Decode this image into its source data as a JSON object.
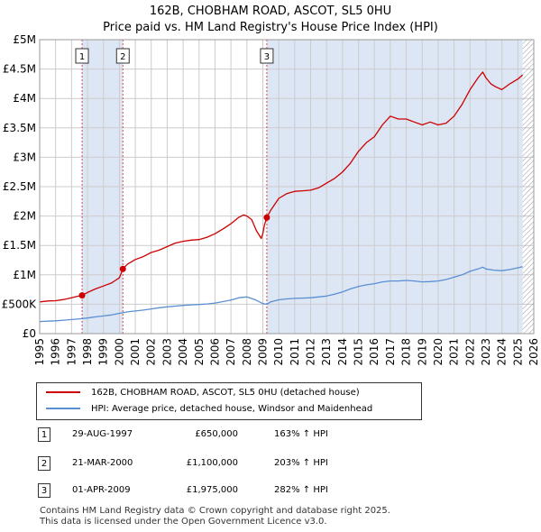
{
  "chart_data": {
    "type": "line",
    "title": "162B, CHOBHAM ROAD, ASCOT, SL5 0HU",
    "subtitle": "Price paid vs. HM Land Registry's House Price Index (HPI)",
    "xlabel": "",
    "ylabel": "",
    "xlim": [
      1995,
      2026
    ],
    "ylim": [
      0,
      5000000
    ],
    "y_ticks": [
      {
        "value": 0,
        "label": "£0"
      },
      {
        "value": 500000,
        "label": "£500K"
      },
      {
        "value": 1000000,
        "label": "£1M"
      },
      {
        "value": 1500000,
        "label": "£1.5M"
      },
      {
        "value": 2000000,
        "label": "£2M"
      },
      {
        "value": 2500000,
        "label": "£2.5M"
      },
      {
        "value": 3000000,
        "label": "£3M"
      },
      {
        "value": 3500000,
        "label": "£3.5M"
      },
      {
        "value": 4000000,
        "label": "£4M"
      },
      {
        "value": 4500000,
        "label": "£4.5M"
      },
      {
        "value": 5000000,
        "label": "£5M"
      }
    ],
    "x_ticks": [
      "1995",
      "1996",
      "1997",
      "1998",
      "1999",
      "2000",
      "2001",
      "2002",
      "2003",
      "2004",
      "2005",
      "2006",
      "2007",
      "2008",
      "2009",
      "2010",
      "2011",
      "2012",
      "2013",
      "2014",
      "2015",
      "2016",
      "2017",
      "2018",
      "2019",
      "2020",
      "2021",
      "2022",
      "2023",
      "2024",
      "2025",
      "2026"
    ],
    "grid": true,
    "shaded_periods": [
      {
        "from": 1997.66,
        "to": 2000.22
      },
      {
        "from": 2009.25,
        "to": 2025.3
      }
    ],
    "hatched_from": 2025.3,
    "series": [
      {
        "name": "162B, CHOBHAM ROAD, ASCOT, SL5 0HU (detached house)",
        "color": "#cc0000",
        "x": [
          1995.0,
          1995.5,
          1996.0,
          1996.5,
          1997.0,
          1997.3,
          1997.66,
          1998.0,
          1998.5,
          1999.0,
          1999.5,
          2000.0,
          2000.22,
          2000.5,
          2001.0,
          2001.5,
          2002.0,
          2002.5,
          2003.0,
          2003.5,
          2004.0,
          2004.5,
          2005.0,
          2005.5,
          2006.0,
          2006.5,
          2007.0,
          2007.5,
          2007.8,
          2008.0,
          2008.3,
          2008.6,
          2008.9,
          2009.0,
          2009.1,
          2009.25,
          2009.5,
          2010.0,
          2010.5,
          2011.0,
          2011.5,
          2012.0,
          2012.5,
          2013.0,
          2013.5,
          2014.0,
          2014.5,
          2015.0,
          2015.5,
          2016.0,
          2016.5,
          2017.0,
          2017.5,
          2018.0,
          2018.5,
          2019.0,
          2019.5,
          2020.0,
          2020.5,
          2021.0,
          2021.5,
          2022.0,
          2022.5,
          2022.8,
          2023.0,
          2023.3,
          2023.6,
          2024.0,
          2024.5,
          2025.0,
          2025.3
        ],
        "values": [
          540000,
          555000,
          560000,
          580000,
          610000,
          630000,
          650000,
          700000,
          760000,
          810000,
          860000,
          950000,
          1100000,
          1180000,
          1260000,
          1310000,
          1380000,
          1420000,
          1480000,
          1540000,
          1570000,
          1590000,
          1600000,
          1640000,
          1700000,
          1780000,
          1870000,
          1980000,
          2020000,
          2000000,
          1940000,
          1750000,
          1620000,
          1700000,
          1850000,
          1975000,
          2100000,
          2300000,
          2380000,
          2420000,
          2430000,
          2440000,
          2480000,
          2560000,
          2640000,
          2750000,
          2900000,
          3100000,
          3250000,
          3350000,
          3550000,
          3700000,
          3650000,
          3650000,
          3600000,
          3550000,
          3600000,
          3550000,
          3580000,
          3700000,
          3900000,
          4150000,
          4350000,
          4450000,
          4350000,
          4250000,
          4200000,
          4150000,
          4250000,
          4330000,
          4400000
        ]
      },
      {
        "name": "HPI: Average price, detached house, Windsor and Maidenhead",
        "color": "#5b8fd1",
        "x": [
          1995.0,
          1995.5,
          1996.0,
          1996.5,
          1997.0,
          1997.5,
          1998.0,
          1998.5,
          1999.0,
          1999.5,
          2000.0,
          2000.5,
          2001.0,
          2001.5,
          2002.0,
          2002.5,
          2003.0,
          2003.5,
          2004.0,
          2004.5,
          2005.0,
          2005.5,
          2006.0,
          2006.5,
          2007.0,
          2007.5,
          2008.0,
          2008.5,
          2009.0,
          2009.25,
          2009.5,
          2010.0,
          2010.5,
          2011.0,
          2011.5,
          2012.0,
          2012.5,
          2013.0,
          2013.5,
          2014.0,
          2014.5,
          2015.0,
          2015.5,
          2016.0,
          2016.5,
          2017.0,
          2017.5,
          2018.0,
          2018.5,
          2019.0,
          2019.5,
          2020.0,
          2020.5,
          2021.0,
          2021.5,
          2022.0,
          2022.5,
          2022.8,
          2023.0,
          2023.5,
          2024.0,
          2024.5,
          2025.0,
          2025.3
        ],
        "values": [
          205000,
          212000,
          218000,
          228000,
          240000,
          252000,
          265000,
          285000,
          300000,
          318000,
          345000,
          370000,
          385000,
          400000,
          420000,
          440000,
          455000,
          468000,
          480000,
          490000,
          495000,
          505000,
          520000,
          545000,
          570000,
          610000,
          625000,
          580000,
          510000,
          500000,
          540000,
          575000,
          590000,
          600000,
          605000,
          610000,
          625000,
          640000,
          670000,
          710000,
          760000,
          800000,
          830000,
          850000,
          880000,
          895000,
          895000,
          905000,
          895000,
          880000,
          885000,
          895000,
          920000,
          960000,
          1000000,
          1060000,
          1100000,
          1130000,
          1100000,
          1080000,
          1070000,
          1090000,
          1120000,
          1140000
        ]
      }
    ],
    "sales": [
      {
        "n": "1",
        "year": 1997.66,
        "price": 650000
      },
      {
        "n": "2",
        "year": 2000.22,
        "price": 1100000
      },
      {
        "n": "3",
        "year": 2009.25,
        "price": 1975000
      }
    ]
  },
  "legend": {
    "property": "162B, CHOBHAM ROAD, ASCOT, SL5 0HU (detached house)",
    "hpi": "HPI: Average price, detached house, Windsor and Maidenhead"
  },
  "transactions": [
    {
      "n": "1",
      "date": "29-AUG-1997",
      "price": "£650,000",
      "hpi": "163% ↑ HPI"
    },
    {
      "n": "2",
      "date": "21-MAR-2000",
      "price": "£1,100,000",
      "hpi": "203% ↑ HPI"
    },
    {
      "n": "3",
      "date": "01-APR-2009",
      "price": "£1,975,000",
      "hpi": "282% ↑ HPI"
    }
  ],
  "footer": {
    "line1": "Contains HM Land Registry data © Crown copyright and database right 2025.",
    "line2": "This data is licensed under the Open Government Licence v3.0."
  },
  "colors": {
    "property": "#cc0000",
    "hpi": "#5b8fd1",
    "shade": "#dde6f5",
    "grid": "#cccccc"
  }
}
